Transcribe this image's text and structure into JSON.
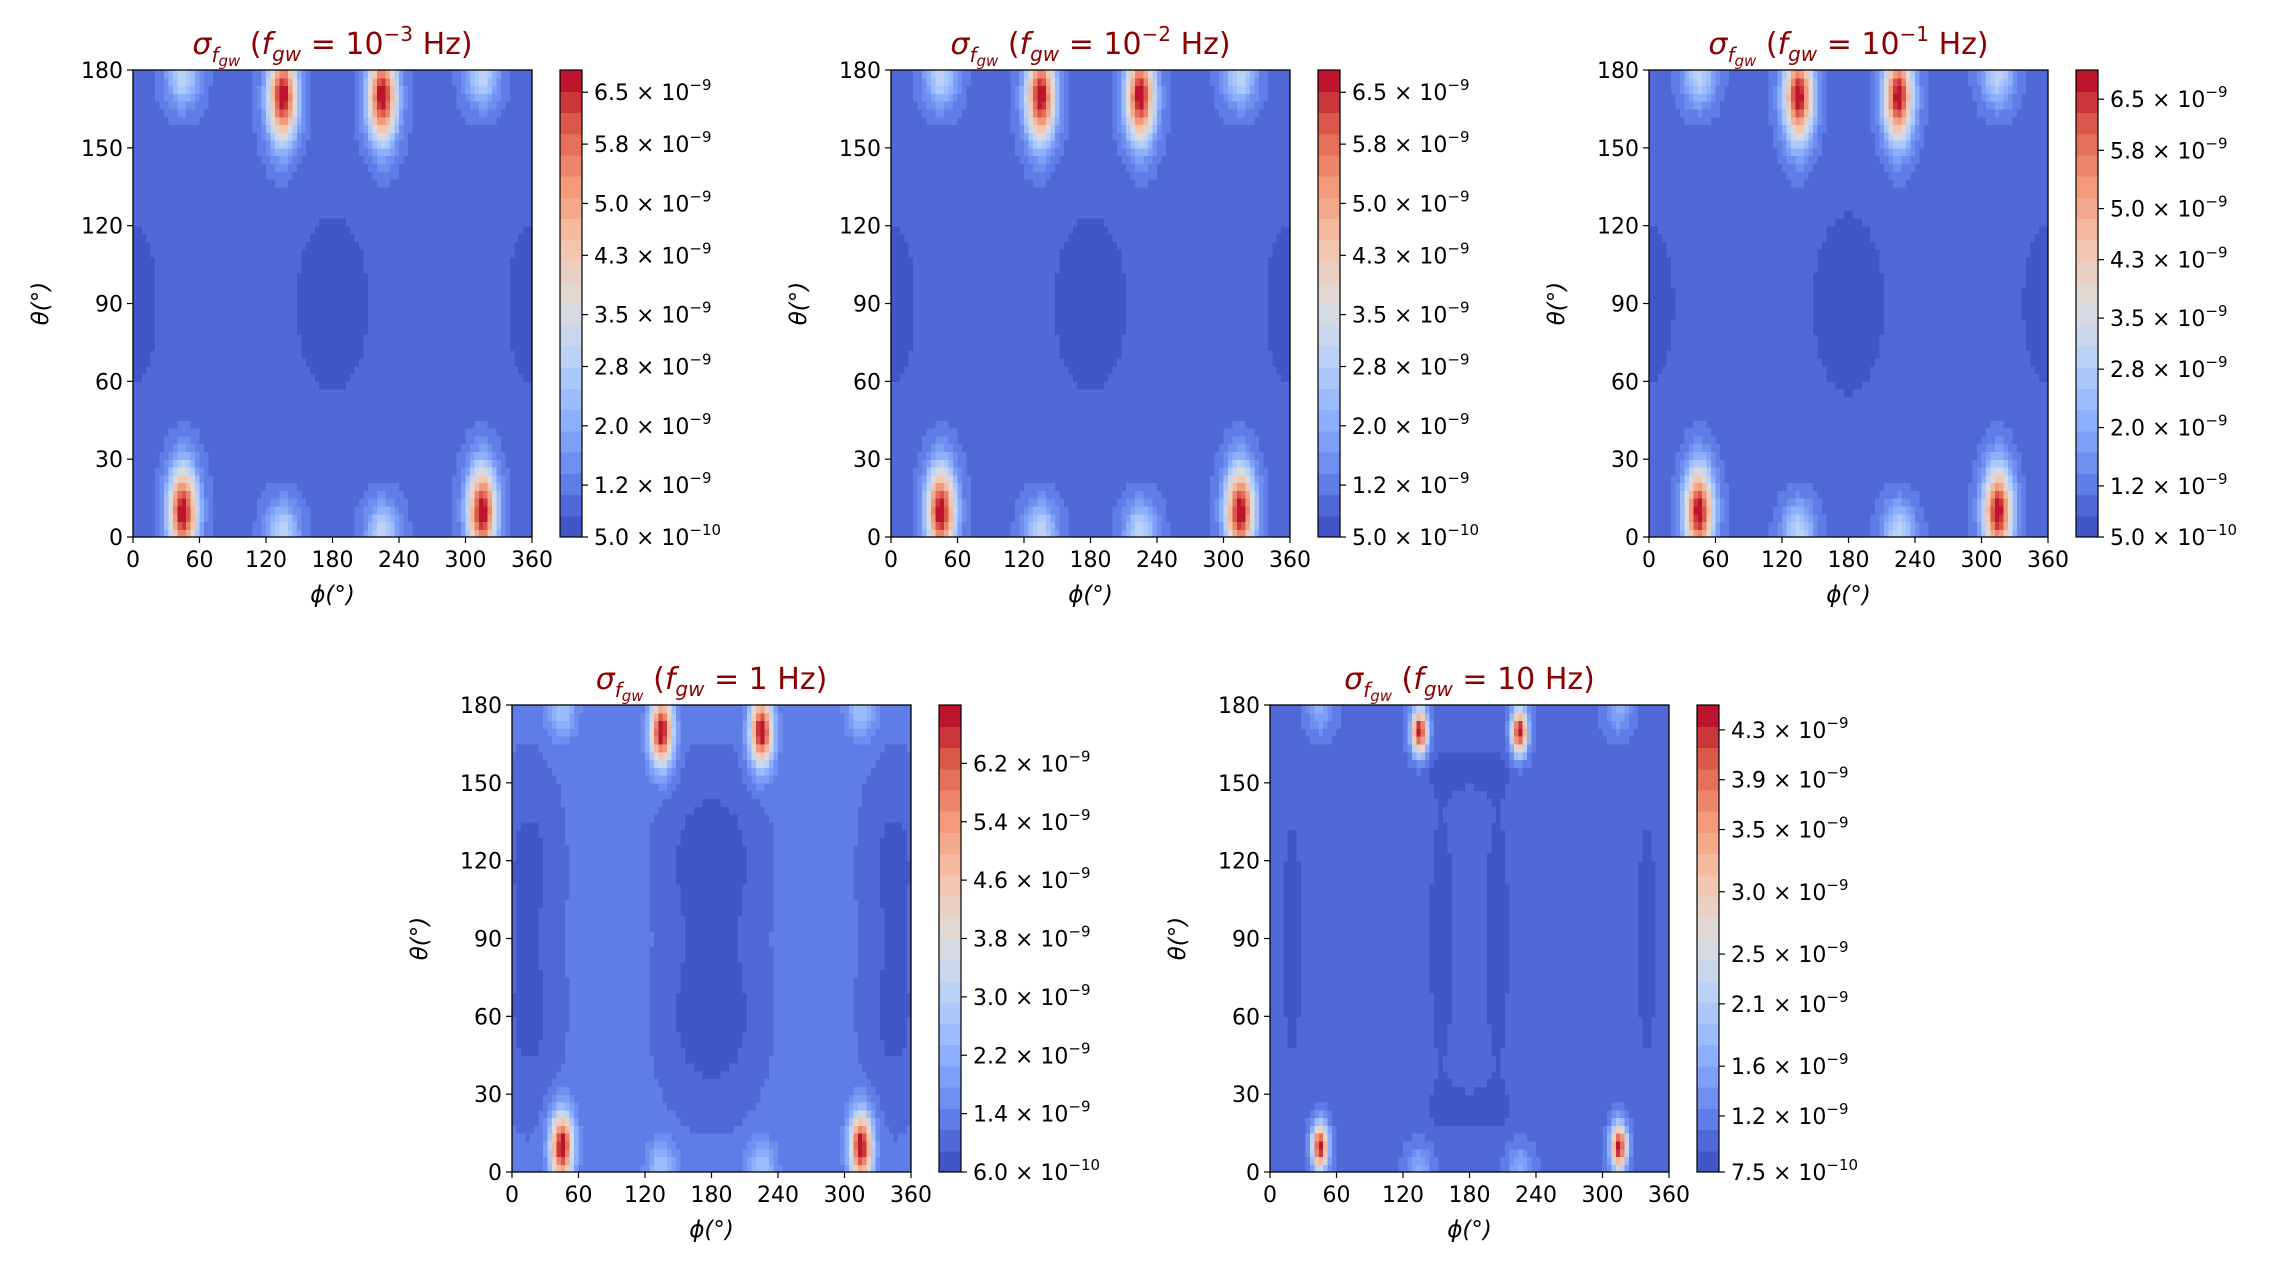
{
  "figure": {
    "title": "sigma_fgw sky maps"
  },
  "chart_data": [
    {
      "type": "heatmap",
      "title": "σ_fgw (f_gw = 10^-3 Hz)",
      "title_parts": {
        "sym": "σ",
        "sub": "f",
        "subsub": "gw",
        "open": "(",
        "var": "f",
        "varsub": "gw",
        "eq": " = ",
        "num": "10",
        "exp": "−3",
        "unit": " Hz)"
      },
      "xlabel": "ϕ(°)",
      "ylabel": "θ(°)",
      "xlim": [
        0,
        360
      ],
      "ylim": [
        0,
        180
      ],
      "xticks": [
        "0",
        "60",
        "120",
        "180",
        "240",
        "300",
        "360"
      ],
      "yticks": [
        "0",
        "30",
        "60",
        "90",
        "120",
        "150",
        "180"
      ],
      "value_range": [
        5e-10,
        6.8e-09
      ],
      "colorbar_ticks": [
        {
          "v": 5e-10,
          "m": "5.0",
          "e": "−10"
        },
        {
          "v": 1.2e-09,
          "m": "1.2",
          "e": "−9"
        },
        {
          "v": 2e-09,
          "m": "2.0",
          "e": "−9"
        },
        {
          "v": 2.8e-09,
          "m": "2.8",
          "e": "−9"
        },
        {
          "v": 3.5e-09,
          "m": "3.5",
          "e": "−9"
        },
        {
          "v": 4.3e-09,
          "m": "4.3",
          "e": "−9"
        },
        {
          "v": 5e-09,
          "m": "5.0",
          "e": "−9"
        },
        {
          "v": 5.8e-09,
          "m": "5.8",
          "e": "−9"
        },
        {
          "v": 6.5e-09,
          "m": "6.5",
          "e": "−9"
        }
      ],
      "base": 1e-09,
      "features": [
        {
          "phi": 180,
          "theta": 90,
          "sphi": 26,
          "stheta": 28,
          "amp": -4.5e-10
        },
        {
          "phi": 0,
          "theta": 90,
          "sphi": 22,
          "stheta": 30,
          "amp": -3.5e-10
        },
        {
          "phi": 360,
          "theta": 90,
          "sphi": 22,
          "stheta": 30,
          "amp": -3.5e-10
        },
        {
          "phi": 45,
          "theta": 10,
          "sphi": 9,
          "stheta": 12,
          "amp": 6e-09
        },
        {
          "phi": 315,
          "theta": 10,
          "sphi": 9,
          "stheta": 12,
          "amp": 6e-09
        },
        {
          "phi": 135,
          "theta": 170,
          "sphi": 9,
          "stheta": 12,
          "amp": 6e-09
        },
        {
          "phi": 225,
          "theta": 170,
          "sphi": 9,
          "stheta": 12,
          "amp": 6e-09
        },
        {
          "phi": 135,
          "theta": 2,
          "sphi": 10,
          "stheta": 8,
          "amp": 2e-09
        },
        {
          "phi": 225,
          "theta": 2,
          "sphi": 10,
          "stheta": 8,
          "amp": 2e-09
        },
        {
          "phi": 45,
          "theta": 178,
          "sphi": 10,
          "stheta": 8,
          "amp": 2e-09
        },
        {
          "phi": 315,
          "theta": 178,
          "sphi": 10,
          "stheta": 8,
          "amp": 2e-09
        }
      ]
    },
    {
      "type": "heatmap",
      "title": "σ_fgw (f_gw = 10^-2 Hz)",
      "title_parts": {
        "sym": "σ",
        "sub": "f",
        "subsub": "gw",
        "open": "(",
        "var": "f",
        "varsub": "gw",
        "eq": " = ",
        "num": "10",
        "exp": "−2",
        "unit": " Hz)"
      },
      "xlabel": "ϕ(°)",
      "ylabel": "θ(°)",
      "xlim": [
        0,
        360
      ],
      "ylim": [
        0,
        180
      ],
      "xticks": [
        "0",
        "60",
        "120",
        "180",
        "240",
        "300",
        "360"
      ],
      "yticks": [
        "0",
        "30",
        "60",
        "90",
        "120",
        "150",
        "180"
      ],
      "value_range": [
        5e-10,
        6.8e-09
      ],
      "colorbar_ticks": [
        {
          "v": 5e-10,
          "m": "5.0",
          "e": "−10"
        },
        {
          "v": 1.2e-09,
          "m": "1.2",
          "e": "−9"
        },
        {
          "v": 2e-09,
          "m": "2.0",
          "e": "−9"
        },
        {
          "v": 2.8e-09,
          "m": "2.8",
          "e": "−9"
        },
        {
          "v": 3.5e-09,
          "m": "3.5",
          "e": "−9"
        },
        {
          "v": 4.3e-09,
          "m": "4.3",
          "e": "−9"
        },
        {
          "v": 5e-09,
          "m": "5.0",
          "e": "−9"
        },
        {
          "v": 5.8e-09,
          "m": "5.8",
          "e": "−9"
        },
        {
          "v": 6.5e-09,
          "m": "6.5",
          "e": "−9"
        }
      ],
      "base": 1e-09,
      "features": [
        {
          "phi": 180,
          "theta": 90,
          "sphi": 26,
          "stheta": 28,
          "amp": -4.5e-10
        },
        {
          "phi": 0,
          "theta": 90,
          "sphi": 22,
          "stheta": 30,
          "amp": -3.5e-10
        },
        {
          "phi": 360,
          "theta": 90,
          "sphi": 22,
          "stheta": 30,
          "amp": -3.5e-10
        },
        {
          "phi": 45,
          "theta": 10,
          "sphi": 9,
          "stheta": 12,
          "amp": 6e-09
        },
        {
          "phi": 315,
          "theta": 10,
          "sphi": 9,
          "stheta": 12,
          "amp": 6e-09
        },
        {
          "phi": 135,
          "theta": 170,
          "sphi": 9,
          "stheta": 12,
          "amp": 6e-09
        },
        {
          "phi": 225,
          "theta": 170,
          "sphi": 9,
          "stheta": 12,
          "amp": 6e-09
        },
        {
          "phi": 135,
          "theta": 2,
          "sphi": 10,
          "stheta": 8,
          "amp": 2e-09
        },
        {
          "phi": 225,
          "theta": 2,
          "sphi": 10,
          "stheta": 8,
          "amp": 2e-09
        },
        {
          "phi": 45,
          "theta": 178,
          "sphi": 10,
          "stheta": 8,
          "amp": 2e-09
        },
        {
          "phi": 315,
          "theta": 178,
          "sphi": 10,
          "stheta": 8,
          "amp": 2e-09
        }
      ]
    },
    {
      "type": "heatmap",
      "title": "σ_fgw (f_gw = 10^-1 Hz)",
      "title_parts": {
        "sym": "σ",
        "sub": "f",
        "subsub": "gw",
        "open": "(",
        "var": "f",
        "varsub": "gw",
        "eq": " = ",
        "num": "10",
        "exp": "−1",
        "unit": " Hz)"
      },
      "xlabel": "ϕ(°)",
      "ylabel": "θ(°)",
      "xlim": [
        0,
        360
      ],
      "ylim": [
        0,
        180
      ],
      "xticks": [
        "0",
        "60",
        "120",
        "180",
        "240",
        "300",
        "360"
      ],
      "yticks": [
        "0",
        "30",
        "60",
        "90",
        "120",
        "150",
        "180"
      ],
      "value_range": [
        5e-10,
        6.9e-09
      ],
      "colorbar_ticks": [
        {
          "v": 5e-10,
          "m": "5.0",
          "e": "−10"
        },
        {
          "v": 1.2e-09,
          "m": "1.2",
          "e": "−9"
        },
        {
          "v": 2e-09,
          "m": "2.0",
          "e": "−9"
        },
        {
          "v": 2.8e-09,
          "m": "2.8",
          "e": "−9"
        },
        {
          "v": 3.5e-09,
          "m": "3.5",
          "e": "−9"
        },
        {
          "v": 4.3e-09,
          "m": "4.3",
          "e": "−9"
        },
        {
          "v": 5e-09,
          "m": "5.0",
          "e": "−9"
        },
        {
          "v": 5.8e-09,
          "m": "5.8",
          "e": "−9"
        },
        {
          "v": 6.5e-09,
          "m": "6.5",
          "e": "−9"
        }
      ],
      "base": 1e-09,
      "features": [
        {
          "phi": 180,
          "theta": 90,
          "sphi": 26,
          "stheta": 28,
          "amp": -4.5e-10
        },
        {
          "phi": 0,
          "theta": 90,
          "sphi": 22,
          "stheta": 30,
          "amp": -3.5e-10
        },
        {
          "phi": 360,
          "theta": 90,
          "sphi": 22,
          "stheta": 30,
          "amp": -3.5e-10
        },
        {
          "phi": 45,
          "theta": 10,
          "sphi": 9,
          "stheta": 12,
          "amp": 6e-09
        },
        {
          "phi": 315,
          "theta": 10,
          "sphi": 9,
          "stheta": 12,
          "amp": 6e-09
        },
        {
          "phi": 135,
          "theta": 170,
          "sphi": 9,
          "stheta": 12,
          "amp": 6e-09
        },
        {
          "phi": 225,
          "theta": 170,
          "sphi": 9,
          "stheta": 12,
          "amp": 6e-09
        },
        {
          "phi": 135,
          "theta": 2,
          "sphi": 10,
          "stheta": 8,
          "amp": 2e-09
        },
        {
          "phi": 225,
          "theta": 2,
          "sphi": 10,
          "stheta": 8,
          "amp": 2e-09
        },
        {
          "phi": 45,
          "theta": 178,
          "sphi": 10,
          "stheta": 8,
          "amp": 2e-09
        },
        {
          "phi": 315,
          "theta": 178,
          "sphi": 10,
          "stheta": 8,
          "amp": 2e-09
        }
      ]
    },
    {
      "type": "heatmap",
      "title": "σ_fgw (f_gw = 1 Hz)",
      "title_parts": {
        "sym": "σ",
        "sub": "f",
        "subsub": "gw",
        "open": "(",
        "var": "f",
        "varsub": "gw",
        "eq": " = ",
        "num": "1",
        "exp": "",
        "unit": " Hz)"
      },
      "xlabel": "ϕ(°)",
      "ylabel": "θ(°)",
      "xlim": [
        0,
        360
      ],
      "ylim": [
        0,
        180
      ],
      "xticks": [
        "0",
        "60",
        "120",
        "180",
        "240",
        "300",
        "360"
      ],
      "yticks": [
        "0",
        "30",
        "60",
        "90",
        "120",
        "150",
        "180"
      ],
      "value_range": [
        6e-10,
        7e-09
      ],
      "colorbar_ticks": [
        {
          "v": 6e-10,
          "m": "6.0",
          "e": "−10"
        },
        {
          "v": 1.4e-09,
          "m": "1.4",
          "e": "−9"
        },
        {
          "v": 2.2e-09,
          "m": "2.2",
          "e": "−9"
        },
        {
          "v": 3e-09,
          "m": "3.0",
          "e": "−9"
        },
        {
          "v": 3.8e-09,
          "m": "3.8",
          "e": "−9"
        },
        {
          "v": 4.6e-09,
          "m": "4.6",
          "e": "−9"
        },
        {
          "v": 5.4e-09,
          "m": "5.4",
          "e": "−9"
        },
        {
          "v": 6.2e-09,
          "m": "6.2",
          "e": "−9"
        }
      ],
      "base": 1.25e-09,
      "features": [
        {
          "phi": 165,
          "theta": 120,
          "sphi": 22,
          "stheta": 22,
          "amp": -4e-10
        },
        {
          "phi": 195,
          "theta": 120,
          "sphi": 22,
          "stheta": 22,
          "amp": -4e-10
        },
        {
          "phi": 165,
          "theta": 60,
          "sphi": 22,
          "stheta": 22,
          "amp": -4e-10
        },
        {
          "phi": 195,
          "theta": 60,
          "sphi": 22,
          "stheta": 22,
          "amp": -4e-10
        },
        {
          "phi": 15,
          "theta": 120,
          "sphi": 18,
          "stheta": 24,
          "amp": -4.5e-10
        },
        {
          "phi": 15,
          "theta": 60,
          "sphi": 18,
          "stheta": 24,
          "amp": -4.5e-10
        },
        {
          "phi": 345,
          "theta": 120,
          "sphi": 18,
          "stheta": 24,
          "amp": -4.5e-10
        },
        {
          "phi": 345,
          "theta": 60,
          "sphi": 18,
          "stheta": 24,
          "amp": -4.5e-10
        },
        {
          "phi": 45,
          "theta": 10,
          "sphi": 7,
          "stheta": 9,
          "amp": 6e-09
        },
        {
          "phi": 315,
          "theta": 10,
          "sphi": 7,
          "stheta": 9,
          "amp": 6e-09
        },
        {
          "phi": 135,
          "theta": 170,
          "sphi": 7,
          "stheta": 9,
          "amp": 6e-09
        },
        {
          "phi": 225,
          "theta": 170,
          "sphi": 7,
          "stheta": 9,
          "amp": 6e-09
        },
        {
          "phi": 135,
          "theta": 2,
          "sphi": 9,
          "stheta": 7,
          "amp": 1.4e-09
        },
        {
          "phi": 225,
          "theta": 2,
          "sphi": 9,
          "stheta": 7,
          "amp": 1.4e-09
        },
        {
          "phi": 45,
          "theta": 178,
          "sphi": 9,
          "stheta": 7,
          "amp": 1.4e-09
        },
        {
          "phi": 315,
          "theta": 178,
          "sphi": 9,
          "stheta": 7,
          "amp": 1.4e-09
        }
      ]
    },
    {
      "type": "heatmap",
      "title": "σ_fgw (f_gw = 10 Hz)",
      "title_parts": {
        "sym": "σ",
        "sub": "f",
        "subsub": "gw",
        "open": "(",
        "var": "f",
        "varsub": "gw",
        "eq": " = ",
        "num": "10",
        "exp": "",
        "unit": " Hz)"
      },
      "xlabel": "ϕ(°)",
      "ylabel": "θ(°)",
      "xlim": [
        0,
        360
      ],
      "ylim": [
        0,
        180
      ],
      "xticks": [
        "0",
        "60",
        "120",
        "180",
        "240",
        "300",
        "360"
      ],
      "yticks": [
        "0",
        "30",
        "60",
        "90",
        "120",
        "150",
        "180"
      ],
      "value_range": [
        7.5e-10,
        4.5e-09
      ],
      "colorbar_ticks": [
        {
          "v": 7.5e-10,
          "m": "7.5",
          "e": "−10"
        },
        {
          "v": 1.2e-09,
          "m": "1.2",
          "e": "−9"
        },
        {
          "v": 1.6e-09,
          "m": "1.6",
          "e": "−9"
        },
        {
          "v": 2.1e-09,
          "m": "2.1",
          "e": "−9"
        },
        {
          "v": 2.5e-09,
          "m": "2.5",
          "e": "−9"
        },
        {
          "v": 3e-09,
          "m": "3.0",
          "e": "−9"
        },
        {
          "v": 3.5e-09,
          "m": "3.5",
          "e": "−9"
        },
        {
          "v": 3.9e-09,
          "m": "3.9",
          "e": "−9"
        },
        {
          "v": 4.3e-09,
          "m": "4.3",
          "e": "−9"
        }
      ],
      "base": 1.05e-09,
      "features": [
        {
          "phi": 155,
          "theta": 90,
          "sphi": 10,
          "stheta": 45,
          "amp": -2.2e-10
        },
        {
          "phi": 205,
          "theta": 90,
          "sphi": 10,
          "stheta": 45,
          "amp": -2.2e-10
        },
        {
          "phi": 180,
          "theta": 155,
          "sphi": 30,
          "stheta": 7,
          "amp": -1.8e-10
        },
        {
          "phi": 180,
          "theta": 25,
          "sphi": 30,
          "stheta": 7,
          "amp": -1.8e-10
        },
        {
          "phi": 20,
          "theta": 90,
          "sphi": 9,
          "stheta": 48,
          "amp": -2e-10
        },
        {
          "phi": 340,
          "theta": 90,
          "sphi": 9,
          "stheta": 48,
          "amp": -2e-10
        },
        {
          "phi": 45,
          "theta": 10,
          "sphi": 5,
          "stheta": 6,
          "amp": 3.5e-09
        },
        {
          "phi": 315,
          "theta": 10,
          "sphi": 5,
          "stheta": 6,
          "amp": 3.5e-09
        },
        {
          "phi": 135,
          "theta": 170,
          "sphi": 5,
          "stheta": 6,
          "amp": 3.5e-09
        },
        {
          "phi": 225,
          "theta": 170,
          "sphi": 5,
          "stheta": 6,
          "amp": 3.5e-09
        },
        {
          "phi": 135,
          "theta": 2,
          "sphi": 8,
          "stheta": 6,
          "amp": 6e-10
        },
        {
          "phi": 225,
          "theta": 2,
          "sphi": 8,
          "stheta": 6,
          "amp": 6e-10
        },
        {
          "phi": 45,
          "theta": 178,
          "sphi": 8,
          "stheta": 6,
          "amp": 6e-10
        },
        {
          "phi": 315,
          "theta": 178,
          "sphi": 8,
          "stheta": 6,
          "amp": 6e-10
        }
      ]
    }
  ]
}
